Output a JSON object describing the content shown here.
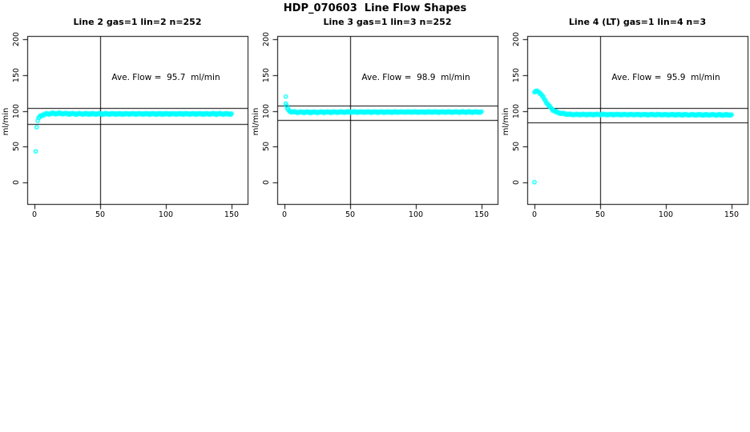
{
  "figure": {
    "background": "#ffffff",
    "title": "HDP_070603  Line Flow Shapes"
  },
  "chart_data": {
    "type": "scatter",
    "title": "HDP_070603  Line Flow Shapes",
    "point_color": "#00ffff",
    "point_style": "open-circle",
    "line_color": "#000000",
    "ylabel": "ml/min",
    "y_ticks": [
      0,
      50,
      100,
      150,
      200
    ],
    "x_ticks": [
      0,
      50,
      100,
      150
    ],
    "ylim": [
      -30,
      205
    ],
    "xlim": [
      -5,
      162
    ],
    "vline_x": 50,
    "grid": false,
    "subplots": [
      {
        "title": "Line 2 gas=1 lin=2 n=252",
        "annotation": "Ave. Flow =  95.7  ml/min",
        "ave_flow": 95.7,
        "n": 252,
        "ref_upper": 104,
        "ref_lower": 82,
        "outliers": [
          [
            1,
            43
          ],
          [
            1.7,
            77
          ]
        ],
        "anchors": [
          [
            2.5,
            86
          ],
          [
            3,
            89
          ],
          [
            4,
            91.5
          ],
          [
            5,
            93
          ],
          [
            6,
            94
          ],
          [
            8,
            95.2
          ],
          [
            10,
            95.8
          ],
          [
            14,
            96.3
          ],
          [
            20,
            96.2
          ],
          [
            30,
            95.8
          ],
          [
            50,
            95.7
          ],
          [
            100,
            95.7
          ],
          [
            150,
            95.7
          ]
        ],
        "series": {
          "x_start": 2.5,
          "x_end": 150,
          "n_points": 250,
          "jitter": 1.3
        }
      },
      {
        "title": "Line 3 gas=1 lin=3 n=252",
        "annotation": "Ave. Flow =  98.9  ml/min",
        "ave_flow": 98.9,
        "n": 252,
        "ref_upper": 107.5,
        "ref_lower": 87.5,
        "outliers": [
          [
            1,
            120
          ]
        ],
        "anchors": [
          [
            1,
            110
          ],
          [
            2,
            104
          ],
          [
            3,
            101
          ],
          [
            4,
            99.5
          ],
          [
            6,
            98.5
          ],
          [
            10,
            98
          ],
          [
            20,
            98
          ],
          [
            50,
            98.3
          ],
          [
            100,
            98.3
          ],
          [
            150,
            98.3
          ]
        ],
        "series": {
          "x_start": 1,
          "x_end": 150,
          "n_points": 251,
          "jitter": 1.2
        }
      },
      {
        "title": "Line 4 (LT) gas=1 lin=4 n=3",
        "annotation": "Ave. Flow =  95.9  ml/min",
        "ave_flow": 95.9,
        "n": 3,
        "ref_upper": 104,
        "ref_lower": 83.5,
        "outliers": [
          [
            0,
            0
          ]
        ],
        "anchors": [
          [
            0,
            126
          ],
          [
            1.5,
            127.5
          ],
          [
            3,
            127
          ],
          [
            5,
            123.5
          ],
          [
            7,
            118
          ],
          [
            9,
            112
          ],
          [
            11,
            107
          ],
          [
            13,
            103
          ],
          [
            15,
            100
          ],
          [
            17,
            98
          ],
          [
            20,
            96.5
          ],
          [
            25,
            95.3
          ],
          [
            30,
            94.8
          ],
          [
            50,
            94.8
          ],
          [
            100,
            94.6
          ],
          [
            150,
            94.3
          ]
        ],
        "series": {
          "x_start": 0,
          "x_end": 150,
          "n_points": 250,
          "jitter": 1.1
        }
      }
    ]
  }
}
